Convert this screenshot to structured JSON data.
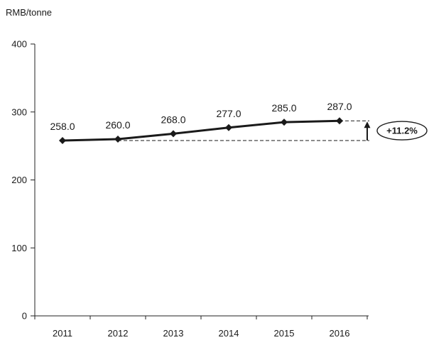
{
  "chart_data": {
    "type": "line",
    "ylabel": "RMB/tonne",
    "categories": [
      "2011",
      "2012",
      "2013",
      "2014",
      "2015",
      "2016"
    ],
    "series": [
      {
        "values": [
          258.0,
          260.0,
          268.0,
          277.0,
          285.0,
          287.0
        ],
        "color": "#1a1a1a",
        "marker": "diamond"
      }
    ],
    "data_labels": [
      "258.0",
      "260.0",
      "268.0",
      "277.0",
      "285.0",
      "287.0"
    ],
    "ylim": [
      0,
      400
    ],
    "yticks": [
      0,
      100,
      200,
      300,
      400
    ],
    "grid": false,
    "annotation": {
      "text": "+11.2%",
      "from_value": 258.0,
      "to_value": 287.0
    }
  }
}
